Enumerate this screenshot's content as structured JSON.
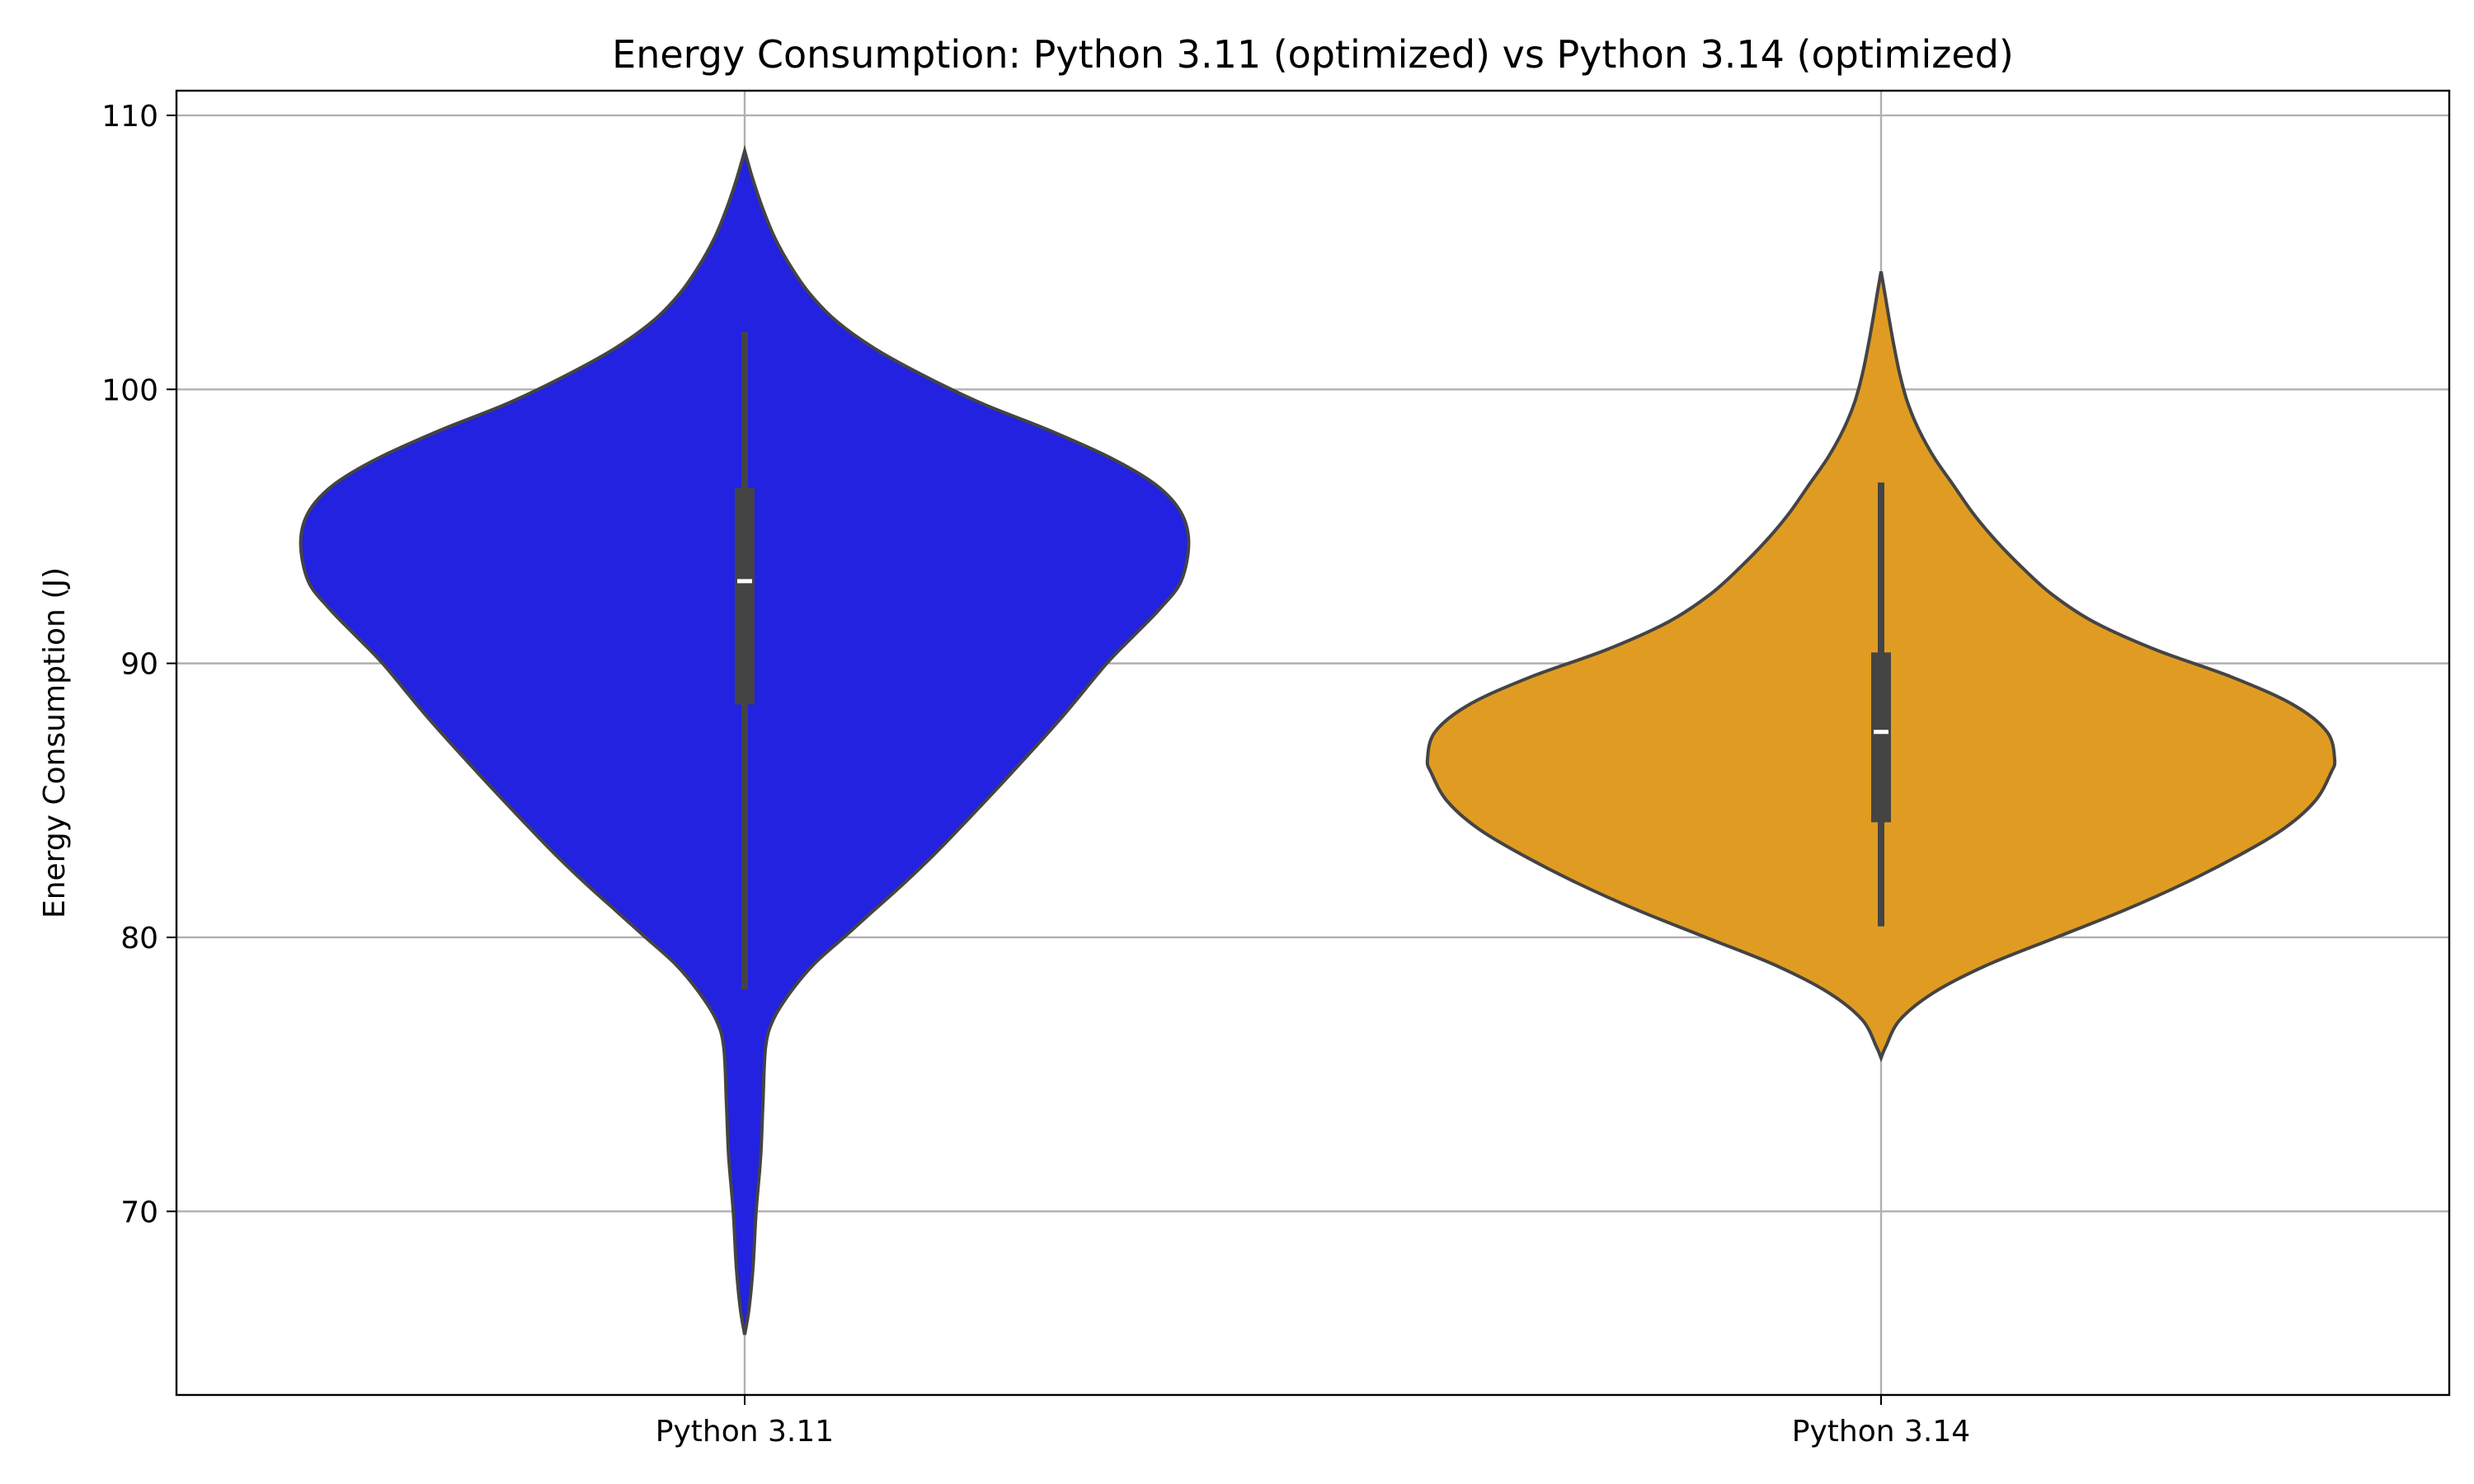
{
  "chart_data": {
    "type": "violin",
    "title": "Energy Consumption: Python 3.11 (optimized) vs Python 3.14 (optimized)",
    "xlabel": "",
    "ylabel": "Energy Consumption (J)",
    "ylim": [
      63.3,
      110.9
    ],
    "yticks": [
      70,
      80,
      90,
      100,
      110
    ],
    "grid": true,
    "categories": [
      "Python 3.11",
      "Python 3.14"
    ],
    "series": [
      {
        "category": "Python 3.11",
        "color": "#2222e0",
        "min": 65.5,
        "max": 108.7,
        "whisker_low": 78.1,
        "q1": 88.5,
        "median": 93.0,
        "q3": 96.4,
        "whisker_high": 102.1,
        "density": [
          [
            65.5,
            0.0
          ],
          [
            66.5,
            0.012
          ],
          [
            68.0,
            0.022
          ],
          [
            70.0,
            0.03
          ],
          [
            72.0,
            0.042
          ],
          [
            74.0,
            0.048
          ],
          [
            76.0,
            0.055
          ],
          [
            77.0,
            0.075
          ],
          [
            78.0,
            0.12
          ],
          [
            79.0,
            0.18
          ],
          [
            80.0,
            0.26
          ],
          [
            81.0,
            0.34
          ],
          [
            82.0,
            0.42
          ],
          [
            83.0,
            0.495
          ],
          [
            84.0,
            0.565
          ],
          [
            86.0,
            0.7
          ],
          [
            88.0,
            0.83
          ],
          [
            90.0,
            0.95
          ],
          [
            91.0,
            1.02
          ],
          [
            92.0,
            1.09
          ],
          [
            93.0,
            1.145
          ],
          [
            94.4,
            1.165
          ],
          [
            95.5,
            1.145
          ],
          [
            96.5,
            1.08
          ],
          [
            97.5,
            0.96
          ],
          [
            98.5,
            0.8
          ],
          [
            99.5,
            0.62
          ],
          [
            100.5,
            0.47
          ],
          [
            101.5,
            0.34
          ],
          [
            102.5,
            0.24
          ],
          [
            103.5,
            0.17
          ],
          [
            104.5,
            0.12
          ],
          [
            105.5,
            0.08
          ],
          [
            106.5,
            0.05
          ],
          [
            107.5,
            0.025
          ],
          [
            108.3,
            0.008
          ],
          [
            108.7,
            0.0
          ]
        ]
      },
      {
        "category": "Python 3.14",
        "color": "#e09c22",
        "min": 75.6,
        "max": 104.3,
        "whisker_low": 80.4,
        "q1": 84.2,
        "median": 87.5,
        "q3": 90.4,
        "whisker_high": 96.6,
        "density": [
          [
            75.6,
            0.0
          ],
          [
            76.0,
            0.012
          ],
          [
            77.0,
            0.05
          ],
          [
            78.0,
            0.14
          ],
          [
            79.0,
            0.28
          ],
          [
            80.0,
            0.46
          ],
          [
            81.0,
            0.64
          ],
          [
            82.0,
            0.8
          ],
          [
            83.0,
            0.94
          ],
          [
            84.0,
            1.06
          ],
          [
            85.0,
            1.14
          ],
          [
            86.0,
            1.18
          ],
          [
            86.5,
            1.19
          ],
          [
            87.5,
            1.17
          ],
          [
            88.5,
            1.08
          ],
          [
            89.5,
            0.92
          ],
          [
            90.5,
            0.72
          ],
          [
            91.5,
            0.56
          ],
          [
            92.5,
            0.45
          ],
          [
            93.5,
            0.37
          ],
          [
            94.5,
            0.3
          ],
          [
            95.5,
            0.24
          ],
          [
            96.5,
            0.19
          ],
          [
            97.5,
            0.14
          ],
          [
            98.5,
            0.1
          ],
          [
            99.5,
            0.07
          ],
          [
            100.5,
            0.05
          ],
          [
            101.5,
            0.035
          ],
          [
            102.5,
            0.022
          ],
          [
            103.5,
            0.01
          ],
          [
            104.3,
            0.0
          ]
        ]
      }
    ]
  }
}
